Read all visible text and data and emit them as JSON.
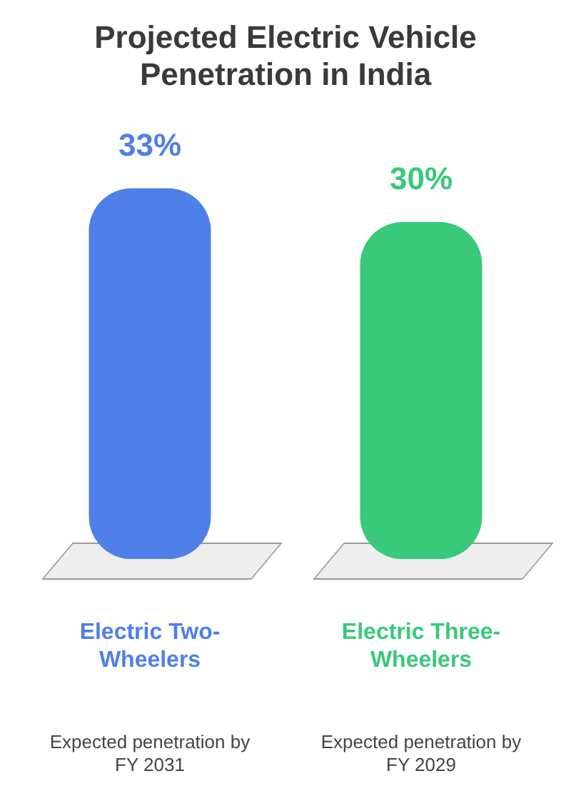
{
  "chart_data": {
    "type": "bar",
    "title": "Projected Electric Vehicle Penetration in India",
    "categories": [
      "Electric Two-Wheelers",
      "Electric Three-Wheelers"
    ],
    "values": [
      33,
      30
    ],
    "colors": [
      "#4f7fe8",
      "#38c97a"
    ],
    "value_labels": [
      "33%",
      "30%"
    ],
    "annotations": [
      "Expected penetration by FY 2031",
      "Expected penetration by FY 2029"
    ],
    "legend": false
  }
}
